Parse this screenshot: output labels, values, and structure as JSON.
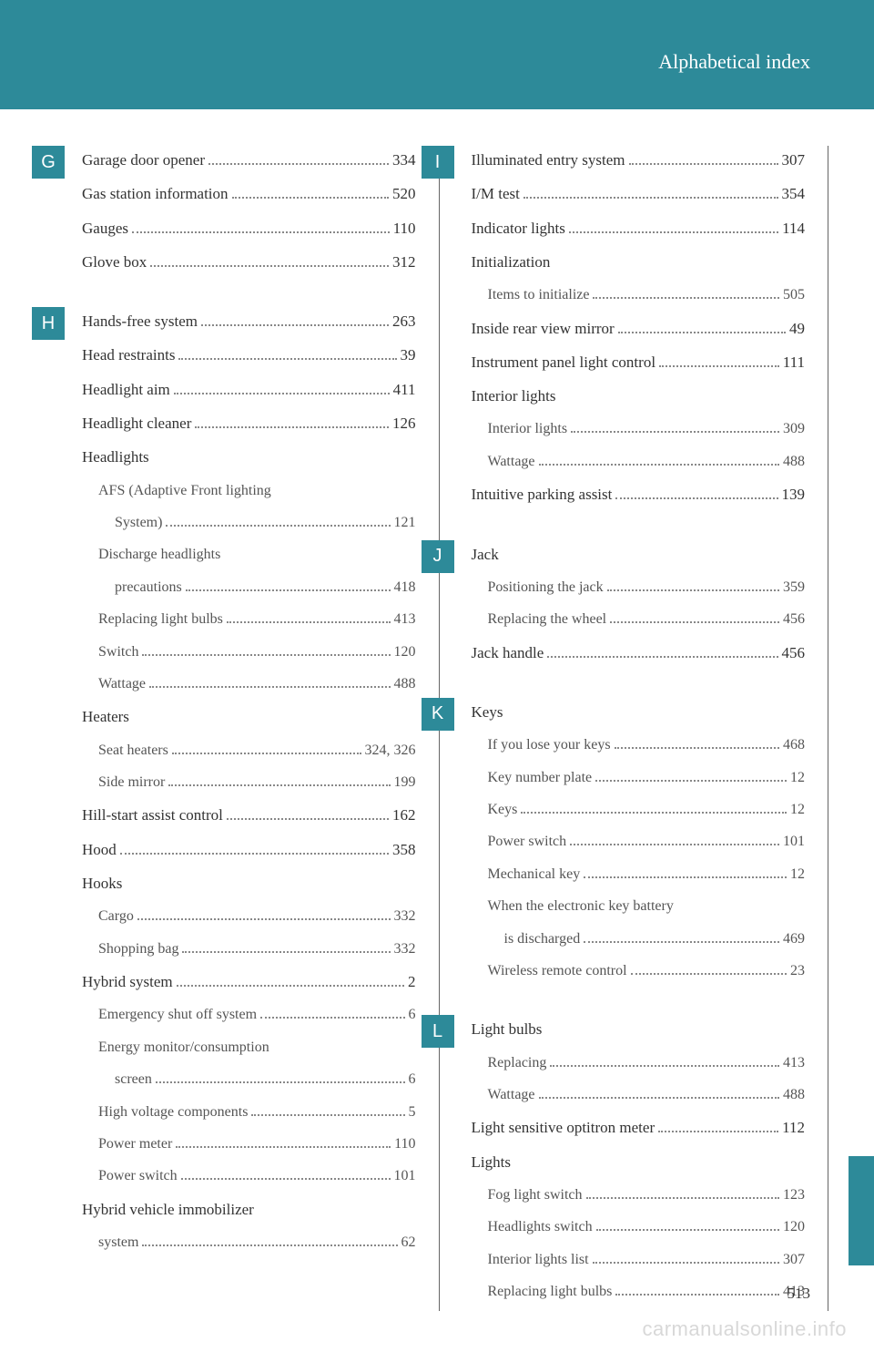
{
  "header": {
    "title": "Alphabetical index"
  },
  "pageNumber": "513",
  "watermark": "carmanualsonline.info",
  "colors": {
    "accent": "#2d8a99",
    "text": "#333333",
    "subtext": "#555555"
  },
  "left": [
    {
      "letter": "G",
      "items": [
        {
          "t": "Garage door opener",
          "p": "334"
        },
        {
          "t": "Gas station information",
          "p": "520"
        },
        {
          "t": "Gauges",
          "p": "110"
        },
        {
          "t": "Glove box",
          "p": "312"
        }
      ]
    },
    {
      "letter": "H",
      "items": [
        {
          "t": "Hands-free system",
          "p": "263"
        },
        {
          "t": "Head restraints",
          "p": "39"
        },
        {
          "t": "Headlight aim",
          "p": "411"
        },
        {
          "t": "Headlight cleaner",
          "p": "126"
        },
        {
          "t": "Headlights",
          "header": true
        },
        {
          "t": "AFS (Adaptive Front lighting",
          "sub": 1,
          "nobreak": true
        },
        {
          "t": "System)",
          "p": "121",
          "sub": 2
        },
        {
          "t": "Discharge headlights",
          "sub": 1,
          "nobreak": true
        },
        {
          "t": "precautions",
          "p": "418",
          "sub": 2
        },
        {
          "t": "Replacing light bulbs",
          "p": "413",
          "sub": 1
        },
        {
          "t": "Switch",
          "p": "120",
          "sub": 1
        },
        {
          "t": "Wattage",
          "p": "488",
          "sub": 1
        },
        {
          "t": "Heaters",
          "header": true
        },
        {
          "t": "Seat heaters",
          "p": "324, 326",
          "sub": 1
        },
        {
          "t": "Side mirror",
          "p": "199",
          "sub": 1
        },
        {
          "t": "Hill-start assist control",
          "p": "162"
        },
        {
          "t": "Hood",
          "p": "358"
        },
        {
          "t": "Hooks",
          "header": true
        },
        {
          "t": "Cargo",
          "p": "332",
          "sub": 1
        },
        {
          "t": "Shopping bag",
          "p": "332",
          "sub": 1
        },
        {
          "t": "Hybrid system",
          "p": "2"
        },
        {
          "t": "Emergency shut off system",
          "p": "6",
          "sub": 1
        },
        {
          "t": "Energy monitor/consumption",
          "sub": 1,
          "nobreak": true
        },
        {
          "t": "screen",
          "p": "6",
          "sub": 2
        },
        {
          "t": "High voltage components",
          "p": "5",
          "sub": 1
        },
        {
          "t": "Power meter",
          "p": "110",
          "sub": 1
        },
        {
          "t": "Power switch",
          "p": "101",
          "sub": 1
        },
        {
          "t": "Hybrid vehicle immobilizer",
          "nobreak": true
        },
        {
          "t": "system",
          "p": "62",
          "sub": 1,
          "forceMain": true
        }
      ]
    }
  ],
  "right": [
    {
      "letter": "I",
      "items": [
        {
          "t": "Illuminated entry system",
          "p": "307"
        },
        {
          "t": "I/M test",
          "p": "354"
        },
        {
          "t": "Indicator lights",
          "p": "114"
        },
        {
          "t": "Initialization",
          "header": true
        },
        {
          "t": "Items to initialize",
          "p": "505",
          "sub": 1
        },
        {
          "t": "Inside rear view mirror",
          "p": "49"
        },
        {
          "t": "Instrument panel light control",
          "p": "111"
        },
        {
          "t": "Interior lights",
          "header": true
        },
        {
          "t": "Interior lights",
          "p": "309",
          "sub": 1
        },
        {
          "t": "Wattage",
          "p": "488",
          "sub": 1
        },
        {
          "t": "Intuitive parking assist",
          "p": "139"
        }
      ]
    },
    {
      "letter": "J",
      "items": [
        {
          "t": "Jack",
          "header": true
        },
        {
          "t": "Positioning the jack",
          "p": "359",
          "sub": 1
        },
        {
          "t": "Replacing the wheel",
          "p": "456",
          "sub": 1
        },
        {
          "t": "Jack handle",
          "p": "456"
        }
      ]
    },
    {
      "letter": "K",
      "items": [
        {
          "t": "Keys",
          "header": true
        },
        {
          "t": "If you lose your keys",
          "p": "468",
          "sub": 1
        },
        {
          "t": "Key number plate",
          "p": "12",
          "sub": 1
        },
        {
          "t": "Keys",
          "p": "12",
          "sub": 1
        },
        {
          "t": "Power switch",
          "p": "101",
          "sub": 1
        },
        {
          "t": "Mechanical key",
          "p": "12",
          "sub": 1
        },
        {
          "t": "When the electronic key battery",
          "sub": 1,
          "nobreak": true
        },
        {
          "t": "is discharged",
          "p": "469",
          "sub": 2
        },
        {
          "t": "Wireless remote control",
          "p": "23",
          "sub": 1
        }
      ]
    },
    {
      "letter": "L",
      "items": [
        {
          "t": "Light bulbs",
          "header": true
        },
        {
          "t": "Replacing",
          "p": "413",
          "sub": 1
        },
        {
          "t": "Wattage",
          "p": "488",
          "sub": 1
        },
        {
          "t": "Light sensitive optitron meter",
          "p": "112"
        },
        {
          "t": "Lights",
          "header": true
        },
        {
          "t": "Fog light switch",
          "p": "123",
          "sub": 1
        },
        {
          "t": "Headlights switch",
          "p": "120",
          "sub": 1
        },
        {
          "t": "Interior lights list",
          "p": "307",
          "sub": 1
        },
        {
          "t": "Replacing light bulbs",
          "p": "413",
          "sub": 1
        }
      ]
    }
  ]
}
